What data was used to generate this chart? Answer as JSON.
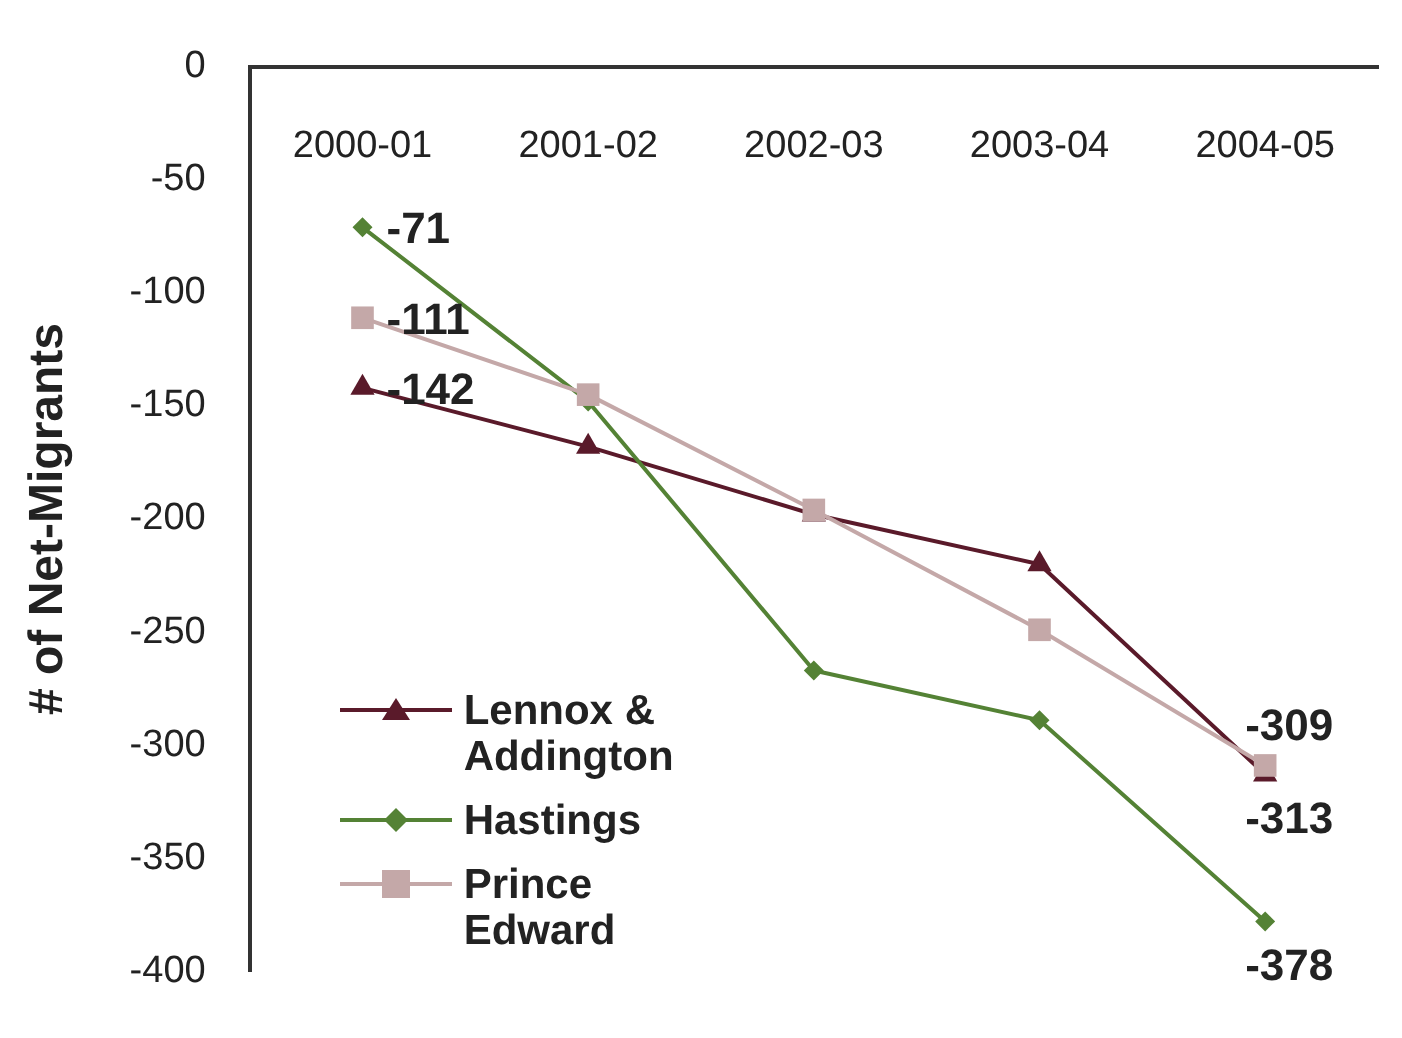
{
  "chart_data": {
    "type": "line",
    "ylabel": "# of Net-Migrants",
    "categories": [
      "2000-01",
      "2001-02",
      "2002-03",
      "2003-04",
      "2004-05"
    ],
    "series": [
      {
        "name": "Lennox & Addington",
        "color": "#5a1a2a",
        "marker": "triangle",
        "values": [
          -142,
          -168,
          -198,
          -220,
          -313
        ],
        "value_labels": [
          "-142",
          null,
          null,
          null,
          "-313"
        ]
      },
      {
        "name": "Hastings",
        "color": "#548235",
        "marker": "diamond",
        "values": [
          -71,
          -148,
          -267,
          -289,
          -378
        ],
        "value_labels": [
          "-71",
          null,
          null,
          null,
          "-378"
        ]
      },
      {
        "name": "Prince Edward",
        "color": "#c4a8a8",
        "marker": "square",
        "values": [
          -111,
          -145,
          -196,
          -249,
          -309
        ],
        "value_labels": [
          "-111",
          null,
          null,
          null,
          "-309"
        ]
      }
    ],
    "ylim": [
      -400,
      0
    ],
    "yticks": [
      -400,
      -350,
      -300,
      -250,
      -200,
      -150,
      -100,
      -50,
      0
    ],
    "grid": false,
    "legend": "bottom left"
  }
}
